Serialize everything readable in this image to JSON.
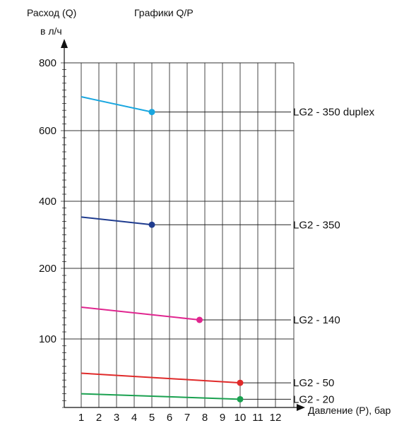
{
  "chart_data": {
    "type": "line",
    "title": "Графики Q/P",
    "ylabel": "Расход (Q)",
    "ylabel_unit": "в л/ч",
    "xlabel": "Давление (P), бар",
    "x_ticks": [
      "1",
      "2",
      "3",
      "4",
      "5",
      "6",
      "7",
      "8",
      "9",
      "10",
      "11",
      "12"
    ],
    "y_ticks": [
      {
        "label": "800",
        "value": 800
      },
      {
        "label": "600",
        "value": 600
      },
      {
        "label": "400",
        "value": 400
      },
      {
        "label": "200",
        "value": 200
      },
      {
        "label": "100",
        "value": 100
      }
    ],
    "xlim": [
      0,
      12
    ],
    "grid": true,
    "series": [
      {
        "name": "LG2 - 350 duplex",
        "color": "#1aa7e0",
        "points": [
          {
            "x": 1,
            "y": 700
          },
          {
            "x": 5,
            "y": 655
          }
        ]
      },
      {
        "name": "LG2 - 350",
        "color": "#1f3c8f",
        "points": [
          {
            "x": 1,
            "y": 353
          },
          {
            "x": 5,
            "y": 330
          }
        ]
      },
      {
        "name": "LG2 - 140",
        "color": "#e0258f",
        "points": [
          {
            "x": 1,
            "y": 145
          },
          {
            "x": 7.7,
            "y": 127
          }
        ]
      },
      {
        "name": "LG2 - 50",
        "color": "#e02a2a",
        "points": [
          {
            "x": 1,
            "y": 50
          },
          {
            "x": 10,
            "y": 36
          }
        ]
      },
      {
        "name": "LG2 - 20",
        "color": "#1aa150",
        "points": [
          {
            "x": 1,
            "y": 20
          },
          {
            "x": 10,
            "y": 12
          }
        ]
      }
    ]
  }
}
